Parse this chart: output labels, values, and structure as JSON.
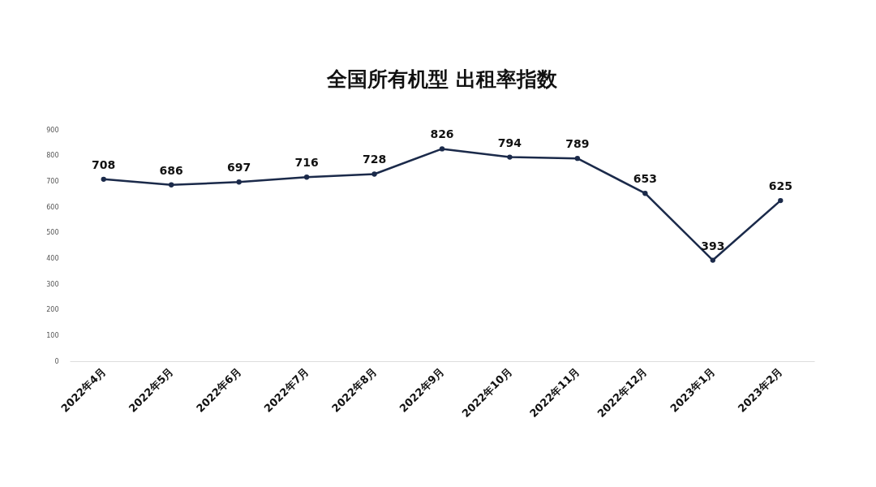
{
  "chart_data": {
    "type": "line",
    "title": "全国所有机型 出租率指数",
    "categories": [
      "2022年4月",
      "2022年5月",
      "2022年6月",
      "2022年7月",
      "2022年8月",
      "2022年9月",
      "2022年10月",
      "2022年11月",
      "2022年12月",
      "2023年1月",
      "2023年2月"
    ],
    "series": [
      {
        "color": "#1b2a4a",
        "values": [
          708,
          686,
          697,
          716,
          728,
          826,
          794,
          789,
          653,
          393,
          625
        ]
      }
    ],
    "ylim": [
      0,
      900
    ],
    "yticks": [
      0,
      100,
      200,
      300,
      400,
      500,
      600,
      700,
      800,
      900
    ],
    "data_labels": true,
    "marker": "circle",
    "grid": false,
    "legend": false
  }
}
